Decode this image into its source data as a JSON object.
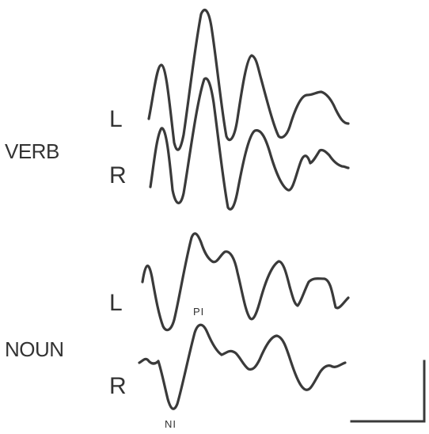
{
  "groups": {
    "verb": {
      "label": "VERB",
      "left_label": "L",
      "right_label": "R"
    },
    "noun": {
      "label": "NOUN",
      "left_label": "L",
      "right_label": "R"
    }
  },
  "peaks": {
    "p1": "PI",
    "n1": "NI"
  },
  "colors": {
    "ink": "#3a3a3a",
    "background": "#ffffff"
  }
}
